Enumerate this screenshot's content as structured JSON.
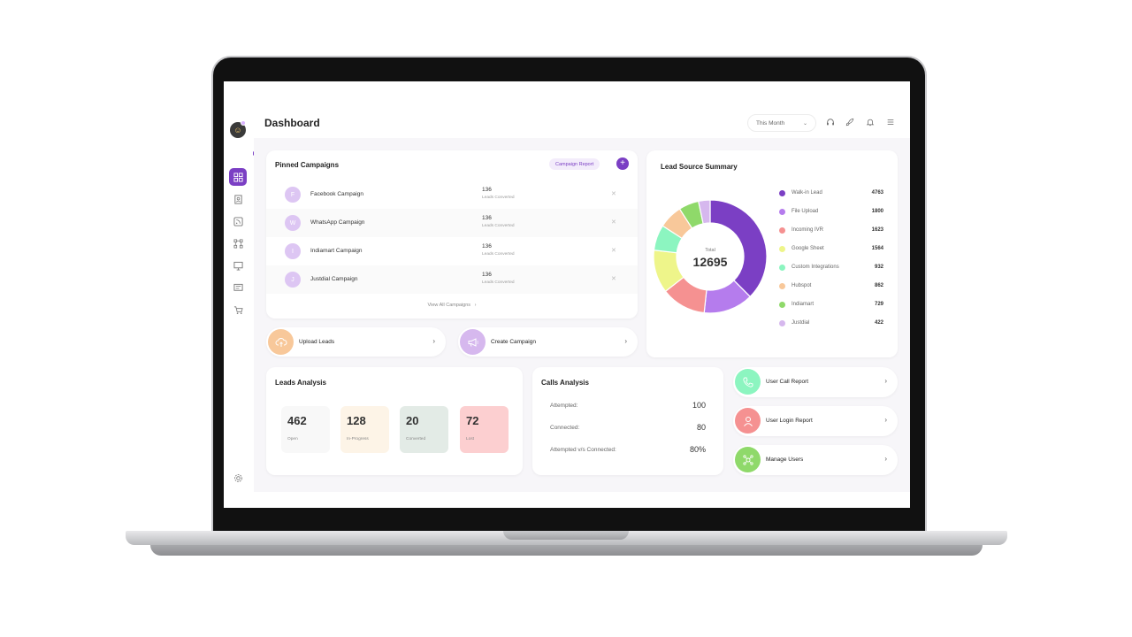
{
  "colors": {
    "accent": "#7b3fc4",
    "content_bg": "#f7f6f9"
  },
  "header": {
    "title": "Dashboard",
    "period_select": "This Month",
    "icons": [
      "headset-icon",
      "rocket-icon",
      "bell-icon",
      "menu-icon"
    ]
  },
  "sidebar": {
    "items": [
      "dashboard-icon",
      "contacts-icon",
      "rss-icon",
      "workflow-icon",
      "monitor-icon",
      "chat-icon",
      "cart-icon",
      "settings-icon"
    ]
  },
  "pinned": {
    "title": "Pinned Campaigns",
    "report_button": "Campaign Report",
    "add_button": "+",
    "view_all": "View All Campaigns",
    "campaigns": [
      {
        "letter": "F",
        "name": "Facebook Campaign",
        "count": "136",
        "sub": "Leads Converted"
      },
      {
        "letter": "W",
        "name": "WhatsApp Campaign",
        "count": "136",
        "sub": "Leads Converted"
      },
      {
        "letter": "I",
        "name": "Indiamart Campaign",
        "count": "136",
        "sub": "Leads Converted"
      },
      {
        "letter": "J",
        "name": "Justdial Campaign",
        "count": "136",
        "sub": "Leads Converted"
      }
    ]
  },
  "actions": {
    "upload_leads": "Upload Leads",
    "create_campaign": "Create Campaign"
  },
  "lead_source": {
    "title": "Lead Source Summary",
    "total_label": "Total",
    "total_value": "12695"
  },
  "chart_data": {
    "type": "pie",
    "title": "Lead Source Summary",
    "donut": true,
    "center_label": "Total",
    "center_value": 12695,
    "categories": [
      "Walk-in Lead",
      "File Upload",
      "Incoming IVR",
      "Google Sheet",
      "Custom Integrations",
      "Hubspot",
      "Indiamart",
      "Justdial"
    ],
    "values": [
      4763,
      1800,
      1623,
      1564,
      932,
      862,
      729,
      422
    ],
    "colors": [
      "#7b3fc4",
      "#b57ced",
      "#f59191",
      "#eef58a",
      "#8cf5c0",
      "#f8c89a",
      "#8fd96a",
      "#d6b8ee"
    ],
    "legend_placement": "right"
  },
  "leads_analysis": {
    "title": "Leads Analysis",
    "tiles": [
      {
        "value": "462",
        "label": "Open",
        "color": "#f8f8f8"
      },
      {
        "value": "128",
        "label": "In-Progress",
        "color": "#fdf4e7"
      },
      {
        "value": "20",
        "label": "Converted",
        "color": "#e3ebe6"
      },
      {
        "value": "72",
        "label": "Lost",
        "color": "#fccfd0"
      }
    ]
  },
  "calls_analysis": {
    "title": "Calls Analysis",
    "rows": [
      {
        "label": "Attempted:",
        "value": "100"
      },
      {
        "label": "Connected:",
        "value": "80"
      },
      {
        "label": "Attempted v/s Connected:",
        "value": "80%"
      }
    ]
  },
  "reports": [
    {
      "label": "User Call Report",
      "icon": "phone-icon",
      "color": "#8cf5c0"
    },
    {
      "label": "User Login Report",
      "icon": "user-icon",
      "color": "#f59191"
    },
    {
      "label": "Manage Users",
      "icon": "users-network-icon",
      "color": "#8fd96a"
    }
  ]
}
